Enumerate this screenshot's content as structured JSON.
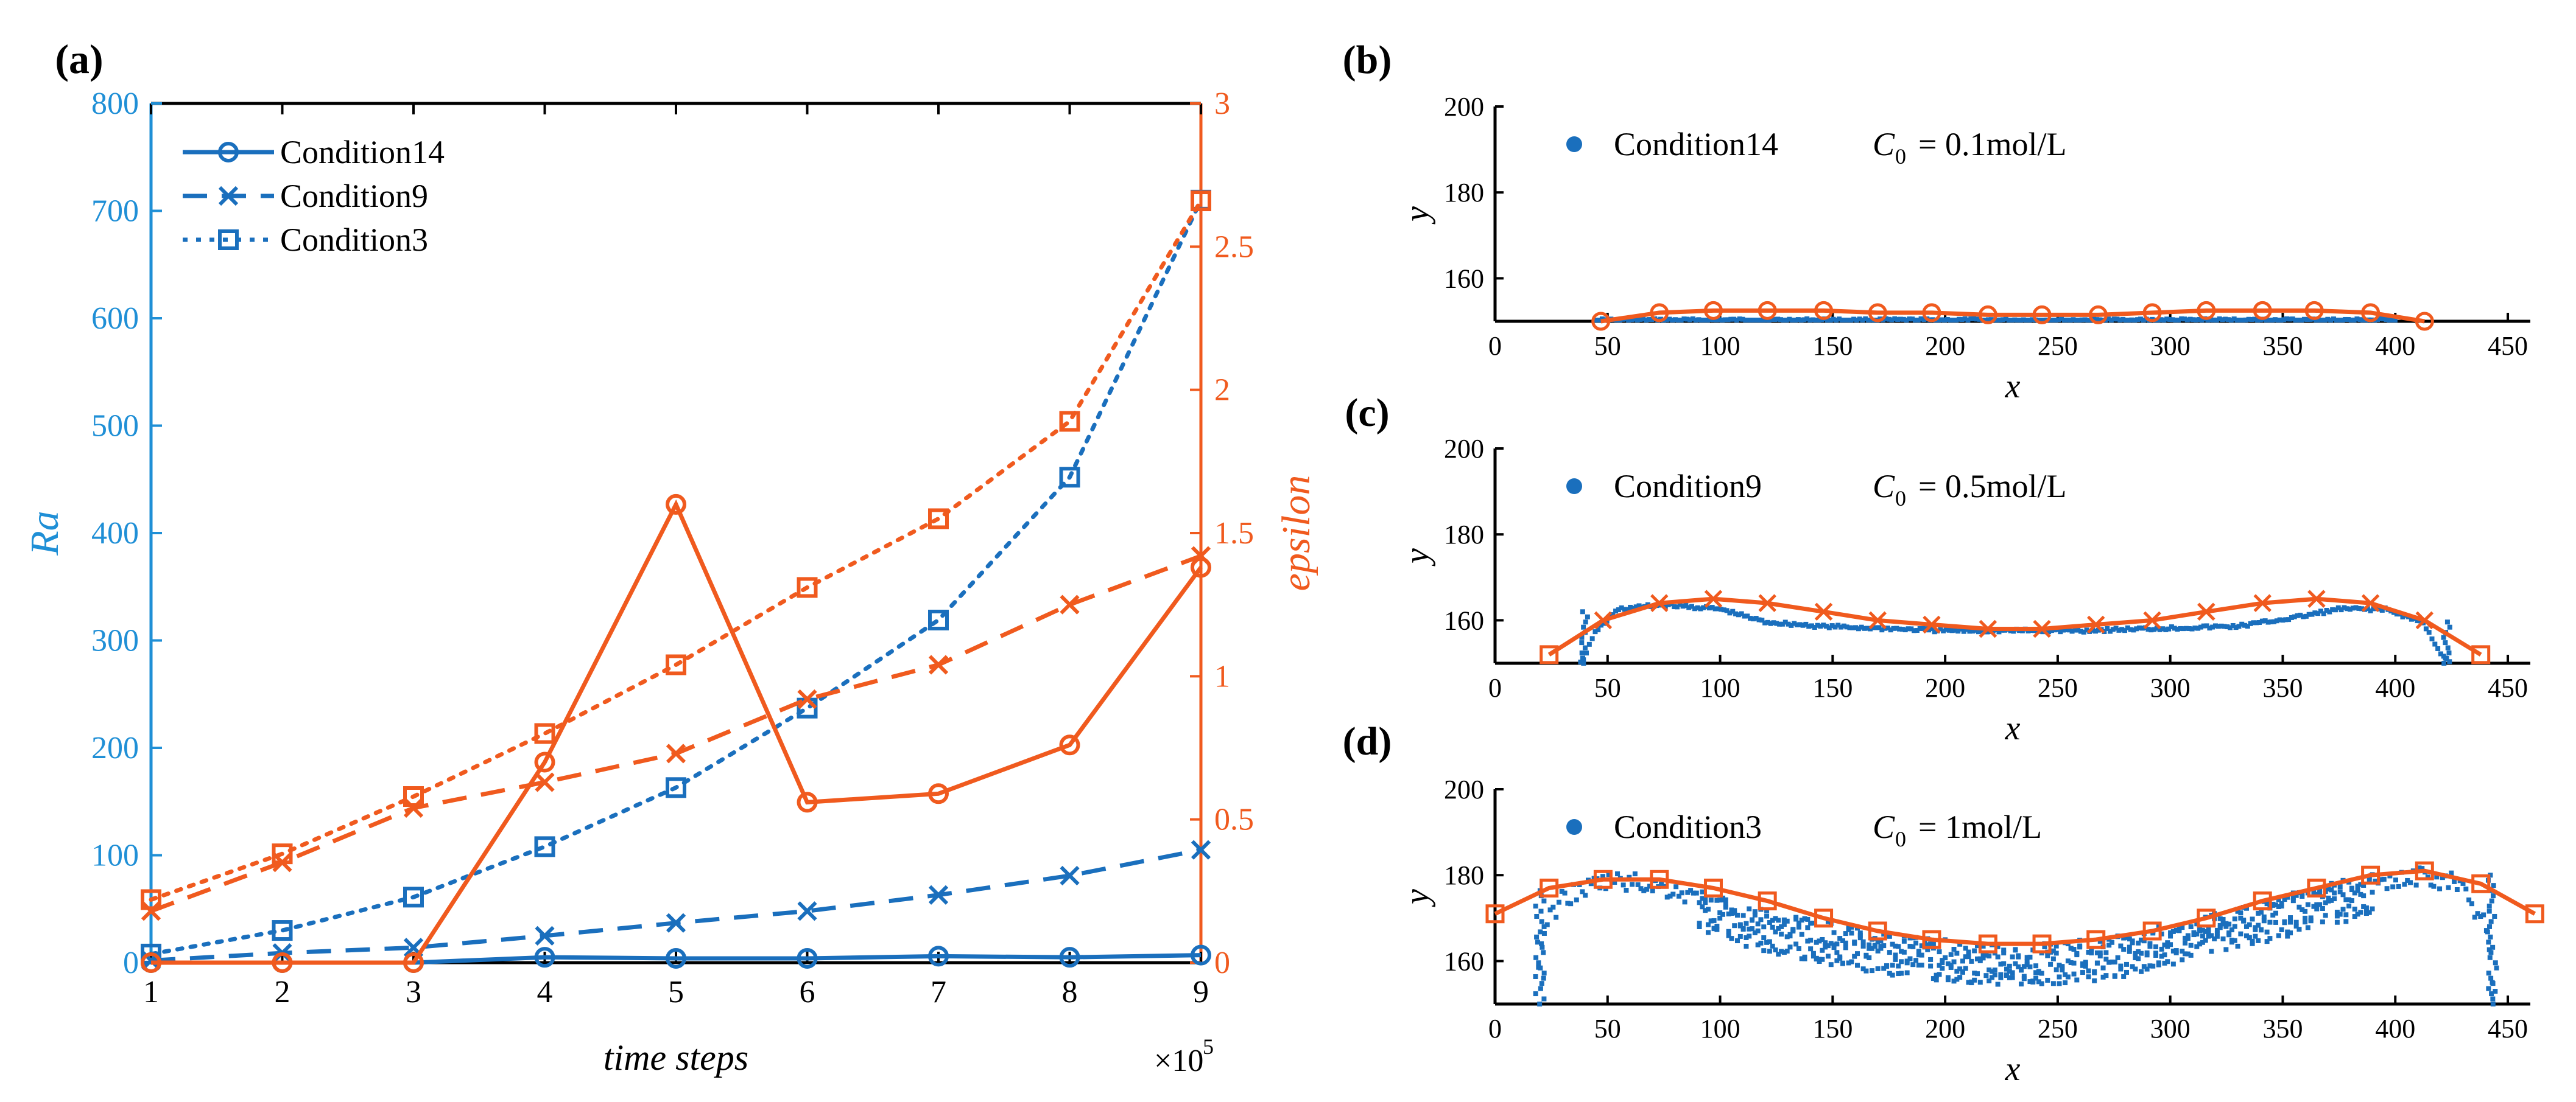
{
  "colors": {
    "blue": "#1a6fbd",
    "orange": "#f05a1e",
    "axis": "#000000",
    "ra_axis": "#1f8fd6"
  },
  "chart_data": [
    {
      "id": "a",
      "panel_label": "(a)",
      "type": "line",
      "title": "",
      "xlabel": "time steps",
      "x_multiplier": "×10",
      "x_multiplier_exp": "5",
      "x": [
        1,
        2,
        3,
        4,
        5,
        6,
        7,
        8,
        9
      ],
      "xlim": [
        1,
        9
      ],
      "x_ticks": [
        "1",
        "2",
        "3",
        "4",
        "5",
        "6",
        "7",
        "8",
        "9"
      ],
      "ylabel_left": "Ra",
      "ylim_left": [
        0,
        800
      ],
      "y_ticks_left": [
        "0",
        "100",
        "200",
        "300",
        "400",
        "500",
        "600",
        "700",
        "800"
      ],
      "ylabel_right": "epsilon",
      "ylim_right": [
        0,
        3
      ],
      "y_ticks_right": [
        "0",
        "0.5",
        "1",
        "1.5",
        "2",
        "2.5",
        "3"
      ],
      "legend": {
        "placement": "top-left",
        "entries": [
          "Condition14",
          "Condition9",
          "Condition3"
        ]
      },
      "series": [
        {
          "name": "Condition14",
          "axis": "left",
          "style": "solid",
          "marker": "circle",
          "color": "blue",
          "values": [
            0,
            0,
            0,
            5,
            4,
            4,
            6,
            5,
            7
          ]
        },
        {
          "name": "Condition9",
          "axis": "left",
          "style": "dashed",
          "marker": "x",
          "color": "blue",
          "values": [
            2,
            9,
            14,
            25,
            37,
            48,
            63,
            81,
            105
          ]
        },
        {
          "name": "Condition3",
          "axis": "left",
          "style": "dotted",
          "marker": "square",
          "color": "blue",
          "values": [
            8,
            30,
            61,
            108,
            163,
            237,
            319,
            452,
            710
          ]
        },
        {
          "name": "Condition14",
          "axis": "right",
          "style": "solid",
          "marker": "circle",
          "color": "orange",
          "values": [
            0,
            0,
            0,
            0.7,
            1.6,
            0.56,
            0.59,
            0.76,
            1.38
          ]
        },
        {
          "name": "Condition9",
          "axis": "right",
          "style": "dashed",
          "marker": "x",
          "color": "orange",
          "values": [
            0.18,
            0.35,
            0.54,
            0.63,
            0.73,
            0.92,
            1.04,
            1.25,
            1.42
          ]
        },
        {
          "name": "Condition3",
          "axis": "right",
          "style": "dotted",
          "marker": "square",
          "color": "orange",
          "values": [
            0.22,
            0.38,
            0.58,
            0.8,
            1.04,
            1.31,
            1.55,
            1.89,
            2.66
          ]
        }
      ]
    },
    {
      "id": "b",
      "panel_label": "(b)",
      "type": "scatter",
      "xlabel": "x",
      "ylabel": "y",
      "xlim": [
        0,
        460
      ],
      "ylim": [
        150,
        200
      ],
      "x_ticks": [
        "0",
        "50",
        "100",
        "150",
        "200",
        "250",
        "300",
        "350",
        "400",
        "450"
      ],
      "y_ticks": [
        "160",
        "180",
        "200"
      ],
      "legend_entry": "Condition14",
      "c0_label": "= 0.1mol/L",
      "c0_value": "0.1mol/L",
      "fit": {
        "marker": "circle",
        "x": [
          47,
          73,
          97,
          121,
          146,
          170,
          194,
          219,
          243,
          268,
          292,
          316,
          341,
          364,
          389,
          413
        ],
        "y": [
          150,
          152,
          152.5,
          152.5,
          152.5,
          152,
          152,
          151.5,
          151.5,
          151.5,
          152,
          152.5,
          152.5,
          152.5,
          152,
          150
        ]
      },
      "points": {
        "x_start": 45,
        "x_end": 400,
        "y_base": 150,
        "y_amp": 1.2,
        "noise": 0.6,
        "mask": []
      }
    },
    {
      "id": "c",
      "panel_label": "(c)",
      "type": "scatter",
      "xlabel": "x",
      "ylabel": "y",
      "xlim": [
        0,
        460
      ],
      "ylim": [
        150,
        200
      ],
      "x_ticks": [
        "0",
        "50",
        "100",
        "150",
        "200",
        "250",
        "300",
        "350",
        "400",
        "450"
      ],
      "y_ticks": [
        "160",
        "180",
        "200"
      ],
      "legend_entry": "Condition9",
      "c0_label": "= 0.5mol/L",
      "c0_value": "0.5mol/L",
      "fit": {
        "marker": "x-end-square",
        "x": [
          24,
          48,
          73,
          97,
          121,
          146,
          170,
          194,
          219,
          243,
          267,
          292,
          316,
          341,
          365,
          389,
          413,
          438
        ],
        "y": [
          152,
          160,
          164,
          165,
          164,
          162,
          160,
          159,
          158,
          158,
          159,
          160,
          162,
          164,
          165,
          164,
          160,
          152
        ]
      },
      "points": {
        "x_start": 38,
        "x_end": 425,
        "profile": [
          [
            38,
            150
          ],
          [
            45,
            158
          ],
          [
            55,
            163
          ],
          [
            75,
            164
          ],
          [
            100,
            163
          ],
          [
            120,
            160
          ],
          [
            145,
            159
          ],
          [
            200,
            158
          ],
          [
            260,
            158
          ],
          [
            330,
            159
          ],
          [
            355,
            161
          ],
          [
            375,
            163
          ],
          [
            395,
            163
          ],
          [
            412,
            160
          ],
          [
            420,
            153
          ],
          [
            425,
            150
          ]
        ],
        "noise": 0.8
      }
    },
    {
      "id": "d",
      "panel_label": "(d)",
      "type": "scatter",
      "xlabel": "x",
      "ylabel": "y",
      "xlim": [
        0,
        460
      ],
      "ylim": [
        150,
        200
      ],
      "x_ticks": [
        "0",
        "50",
        "100",
        "150",
        "200",
        "250",
        "300",
        "350",
        "400",
        "450"
      ],
      "y_ticks": [
        "160",
        "180",
        "200"
      ],
      "legend_entry": "Condition3",
      "c0_label": "= 1mol/L",
      "c0_value": "1mol/L",
      "fit": {
        "marker": "square",
        "x": [
          0,
          24,
          48,
          73,
          97,
          121,
          146,
          170,
          194,
          219,
          243,
          267,
          292,
          316,
          341,
          365,
          389,
          413,
          438,
          462
        ],
        "y": [
          171,
          177,
          179,
          179,
          177,
          174,
          170,
          167,
          165,
          164,
          164,
          165,
          167,
          170,
          174,
          177,
          180,
          181,
          178,
          171
        ]
      },
      "points": {
        "x_start": 18,
        "x_end": 445,
        "profile": [
          [
            18,
            158
          ],
          [
            22,
            170
          ],
          [
            30,
            177
          ],
          [
            50,
            181
          ],
          [
            70,
            180
          ],
          [
            90,
            177
          ],
          [
            110,
            173
          ],
          [
            140,
            170
          ],
          [
            170,
            167
          ],
          [
            200,
            165
          ],
          [
            240,
            164
          ],
          [
            280,
            166
          ],
          [
            310,
            170
          ],
          [
            340,
            174
          ],
          [
            370,
            178
          ],
          [
            395,
            181
          ],
          [
            410,
            182
          ],
          [
            430,
            180
          ],
          [
            440,
            170
          ],
          [
            445,
            152
          ]
        ],
        "noise": 4.5
      }
    }
  ]
}
